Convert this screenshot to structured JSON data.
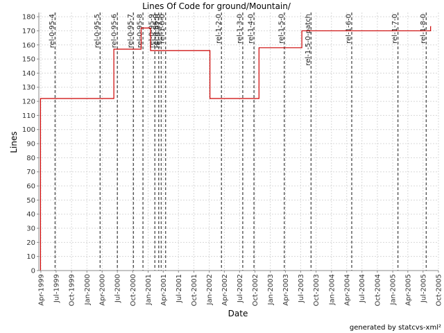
{
  "chart_data": {
    "type": "line",
    "title": "Lines Of Code for ground/Mountain/",
    "xlabel": "Date",
    "ylabel": "Lines",
    "footer": "generated by statcvs-xml²",
    "ylim": [
      0,
      183
    ],
    "yticks": [
      0,
      10,
      20,
      30,
      40,
      50,
      60,
      70,
      80,
      90,
      100,
      110,
      120,
      130,
      140,
      150,
      160,
      170,
      180
    ],
    "xlim": [
      "1999-03-20",
      "2005-10-01"
    ],
    "xticks": [
      {
        "date": "1999-04-01",
        "label": "Apr-1999"
      },
      {
        "date": "1999-07-01",
        "label": "Jul-1999"
      },
      {
        "date": "1999-10-01",
        "label": "Oct-1999"
      },
      {
        "date": "2000-01-01",
        "label": "Jan-2000"
      },
      {
        "date": "2000-04-01",
        "label": "Apr-2000"
      },
      {
        "date": "2000-07-01",
        "label": "Jul-2000"
      },
      {
        "date": "2000-10-01",
        "label": "Oct-2000"
      },
      {
        "date": "2001-01-01",
        "label": "Jan-2001"
      },
      {
        "date": "2001-04-01",
        "label": "Apr-2001"
      },
      {
        "date": "2001-07-01",
        "label": "Jul-2001"
      },
      {
        "date": "2001-10-01",
        "label": "Oct-2001"
      },
      {
        "date": "2002-01-01",
        "label": "Jan-2002"
      },
      {
        "date": "2002-04-01",
        "label": "Apr-2002"
      },
      {
        "date": "2002-07-01",
        "label": "Jul-2002"
      },
      {
        "date": "2002-10-01",
        "label": "Oct-2002"
      },
      {
        "date": "2003-01-01",
        "label": "Jan-2003"
      },
      {
        "date": "2003-04-01",
        "label": "Apr-2003"
      },
      {
        "date": "2003-07-01",
        "label": "Jul-2003"
      },
      {
        "date": "2003-10-01",
        "label": "Oct-2003"
      },
      {
        "date": "2004-01-01",
        "label": "Jan-2004"
      },
      {
        "date": "2004-04-01",
        "label": "Apr-2004"
      },
      {
        "date": "2004-07-01",
        "label": "Jul-2004"
      },
      {
        "date": "2004-10-01",
        "label": "Oct-2004"
      },
      {
        "date": "2005-01-01",
        "label": "Jan-2005"
      },
      {
        "date": "2005-04-01",
        "label": "Apr-2005"
      },
      {
        "date": "2005-07-01",
        "label": "Jul-2005"
      },
      {
        "date": "2005-10-01",
        "label": "Oct-2005"
      }
    ],
    "grid": true,
    "series": [
      {
        "color": "#cc0000",
        "step": true,
        "points": [
          {
            "x": "1999-03-30",
            "y": 0
          },
          {
            "x": "1999-03-30",
            "y": 122
          },
          {
            "x": "2000-06-10",
            "y": 157
          },
          {
            "x": "2000-11-20",
            "y": 172
          },
          {
            "x": "2001-01-15",
            "y": 156
          },
          {
            "x": "2002-01-05",
            "y": 122
          },
          {
            "x": "2002-10-25",
            "y": 158
          },
          {
            "x": "2003-07-08",
            "y": 170
          },
          {
            "x": "2005-08-15",
            "y": 173
          }
        ],
        "end": "2005-08-18"
      }
    ],
    "tags": [
      {
        "date": "1999-06-25",
        "label": "rel-0-95-4"
      },
      {
        "date": "2000-03-20",
        "label": "rel-0-95-5"
      },
      {
        "date": "2000-07-01",
        "label": "rel-0-95-6"
      },
      {
        "date": "2000-10-05",
        "label": "rel-0-95-7"
      },
      {
        "date": "2000-12-01",
        "label": "rel-0-95-8"
      },
      {
        "date": "2001-02-10",
        "label": "rel-0-95-9"
      },
      {
        "date": "2001-03-05",
        "label": "rel-0-96-0"
      },
      {
        "date": "2001-03-20",
        "label": "rel-0-97-0"
      },
      {
        "date": "2001-04-15",
        "label": "rel-1-0-0"
      },
      {
        "date": "2002-03-15",
        "label": "rel-1-2-0"
      },
      {
        "date": "2002-07-20",
        "label": "rel-1-3-0"
      },
      {
        "date": "2002-09-25",
        "label": "rel-1-4-0"
      },
      {
        "date": "2003-03-25",
        "label": "rel-1-5-0"
      },
      {
        "date": "2003-09-01",
        "label": "rel-1-5-0-patch"
      },
      {
        "date": "2004-05-01",
        "label": "rel-1-6-0"
      },
      {
        "date": "2005-02-01",
        "label": "rel-1-7-0"
      },
      {
        "date": "2005-07-20",
        "label": "rel-1-8-0"
      }
    ]
  }
}
